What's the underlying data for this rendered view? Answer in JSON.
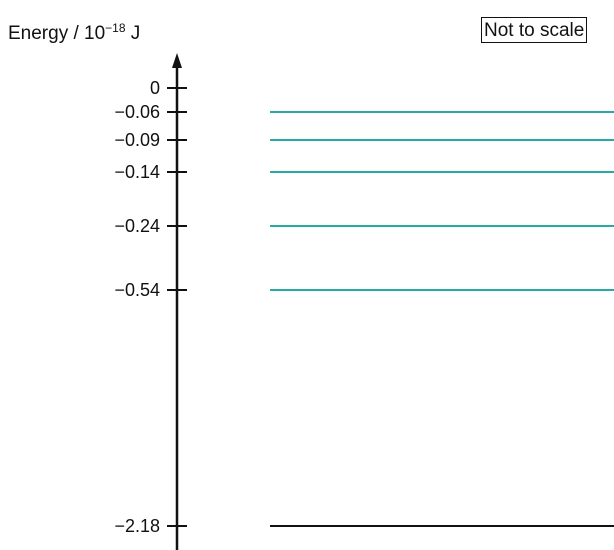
{
  "axis": {
    "title_prefix": "Energy / 10",
    "title_exponent": "−18",
    "title_unit": " J"
  },
  "note": "Not to scale",
  "colors": {
    "excited_level": "#2aa8a4",
    "ground_level": "#111111",
    "axis": "#111111"
  },
  "levels": [
    {
      "label": "0",
      "value": 0,
      "has_line": false
    },
    {
      "label": "−0.06",
      "value": -0.06,
      "has_line": true
    },
    {
      "label": "−0.09",
      "value": -0.09,
      "has_line": true
    },
    {
      "label": "−0.14",
      "value": -0.14,
      "has_line": true
    },
    {
      "label": "−0.24",
      "value": -0.24,
      "has_line": true
    },
    {
      "label": "−0.54",
      "value": -0.54,
      "has_line": true
    },
    {
      "label": "−2.18",
      "value": -2.18,
      "has_line": true
    }
  ]
}
